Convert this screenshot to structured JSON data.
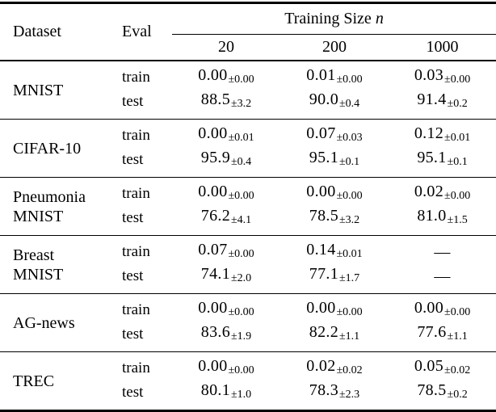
{
  "page": {
    "background_color": "#ffffff",
    "text_color": "#000000",
    "rule_color": "#000000"
  },
  "table": {
    "pm_symbol": "±",
    "dash": "—",
    "header": {
      "dataset": "Dataset",
      "eval": "Eval",
      "group_label": "Training Size",
      "group_var": "n",
      "sizes": [
        "20",
        "200",
        "1000"
      ]
    },
    "eval_labels": {
      "train": "train",
      "test": "test"
    },
    "rows": [
      {
        "dataset_lines": [
          "MNIST"
        ],
        "train": [
          {
            "value": "0.00",
            "pm": "0.00"
          },
          {
            "value": "0.01",
            "pm": "0.00"
          },
          {
            "value": "0.03",
            "pm": "0.00"
          }
        ],
        "test": [
          {
            "value": "88.5",
            "pm": "3.2"
          },
          {
            "value": "90.0",
            "pm": "0.4"
          },
          {
            "value": "91.4",
            "pm": "0.2"
          }
        ]
      },
      {
        "dataset_lines": [
          "CIFAR-10"
        ],
        "train": [
          {
            "value": "0.00",
            "pm": "0.01"
          },
          {
            "value": "0.07",
            "pm": "0.03"
          },
          {
            "value": "0.12",
            "pm": "0.01"
          }
        ],
        "test": [
          {
            "value": "95.9",
            "pm": "0.4"
          },
          {
            "value": "95.1",
            "pm": "0.1"
          },
          {
            "value": "95.1",
            "pm": "0.1"
          }
        ]
      },
      {
        "dataset_lines": [
          "Pneumonia",
          "MNIST"
        ],
        "train": [
          {
            "value": "0.00",
            "pm": "0.00"
          },
          {
            "value": "0.00",
            "pm": "0.00"
          },
          {
            "value": "0.02",
            "pm": "0.00"
          }
        ],
        "test": [
          {
            "value": "76.2",
            "pm": "4.1"
          },
          {
            "value": "78.5",
            "pm": "3.2"
          },
          {
            "value": "81.0",
            "pm": "1.5"
          }
        ]
      },
      {
        "dataset_lines": [
          "Breast",
          "MNIST"
        ],
        "train": [
          {
            "value": "0.07",
            "pm": "0.00"
          },
          {
            "value": "0.14",
            "pm": "0.01"
          },
          {
            "value": "—",
            "pm": null
          }
        ],
        "test": [
          {
            "value": "74.1",
            "pm": "2.0"
          },
          {
            "value": "77.1",
            "pm": "1.7"
          },
          {
            "value": "—",
            "pm": null
          }
        ]
      },
      {
        "dataset_lines": [
          "AG-news"
        ],
        "train": [
          {
            "value": "0.00",
            "pm": "0.00"
          },
          {
            "value": "0.00",
            "pm": "0.00"
          },
          {
            "value": "0.00",
            "pm": "0.00"
          }
        ],
        "test": [
          {
            "value": "83.6",
            "pm": "1.9"
          },
          {
            "value": "82.2",
            "pm": "1.1"
          },
          {
            "value": "77.6",
            "pm": "1.1"
          }
        ]
      },
      {
        "dataset_lines": [
          "TREC"
        ],
        "train": [
          {
            "value": "0.00",
            "pm": "0.00"
          },
          {
            "value": "0.02",
            "pm": "0.02"
          },
          {
            "value": "0.05",
            "pm": "0.02"
          }
        ],
        "test": [
          {
            "value": "80.1",
            "pm": "1.0"
          },
          {
            "value": "78.3",
            "pm": "2.3"
          },
          {
            "value": "78.5",
            "pm": "0.2"
          }
        ]
      }
    ]
  }
}
